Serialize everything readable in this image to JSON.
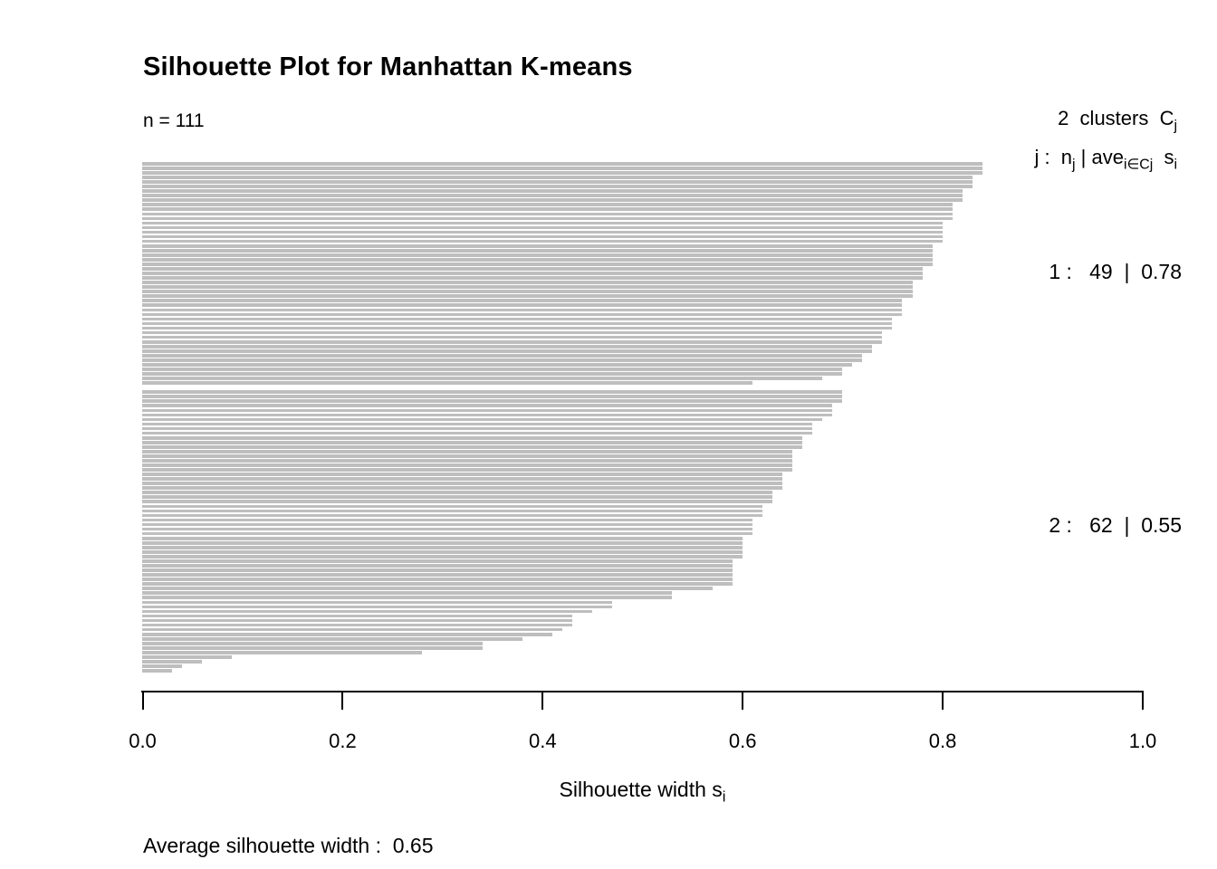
{
  "title": "Silhouette Plot for Manhattan K-means",
  "subtitle": "n = 111",
  "legend": {
    "line1_text": "2  clusters  C",
    "line1_sub": "j",
    "f1": "j :  n",
    "f1_sub": "j",
    "f2": " | ave",
    "f2_sub": "i∈Cj",
    "f3": "  s",
    "f3_sub": "i"
  },
  "xlabel": {
    "text": "Silhouette width s",
    "sub": "i"
  },
  "footer": {
    "average_text": "Average silhouette width :  0.65"
  },
  "chart_data": {
    "type": "bar",
    "orientation": "horizontal",
    "title": "Silhouette Plot for Manhattan K-means",
    "n": 111,
    "n_clusters": 2,
    "average_silhouette_width": 0.65,
    "xlabel": "Silhouette width si",
    "xlim": [
      0,
      1
    ],
    "x_ticks": [
      "0.0",
      "0.2",
      "0.4",
      "0.6",
      "0.8",
      "1.0"
    ],
    "grid": false,
    "bar_color": "#bebebe",
    "clusters": [
      {
        "id": 1,
        "size": 49,
        "avg_width": 0.78,
        "label": "1 :   49  |  0.78",
        "values": [
          0.84,
          0.84,
          0.84,
          0.83,
          0.83,
          0.83,
          0.82,
          0.82,
          0.82,
          0.81,
          0.81,
          0.81,
          0.81,
          0.8,
          0.8,
          0.8,
          0.8,
          0.8,
          0.79,
          0.79,
          0.79,
          0.79,
          0.79,
          0.78,
          0.78,
          0.78,
          0.77,
          0.77,
          0.77,
          0.77,
          0.76,
          0.76,
          0.76,
          0.76,
          0.75,
          0.75,
          0.75,
          0.74,
          0.74,
          0.74,
          0.73,
          0.73,
          0.72,
          0.72,
          0.71,
          0.7,
          0.7,
          0.68,
          0.61
        ]
      },
      {
        "id": 2,
        "size": 62,
        "avg_width": 0.55,
        "label": "2 :   62  |  0.55",
        "values": [
          0.7,
          0.7,
          0.7,
          0.69,
          0.69,
          0.69,
          0.68,
          0.67,
          0.67,
          0.67,
          0.66,
          0.66,
          0.66,
          0.65,
          0.65,
          0.65,
          0.65,
          0.65,
          0.64,
          0.64,
          0.64,
          0.64,
          0.63,
          0.63,
          0.63,
          0.62,
          0.62,
          0.62,
          0.61,
          0.61,
          0.61,
          0.61,
          0.6,
          0.6,
          0.6,
          0.6,
          0.6,
          0.59,
          0.59,
          0.59,
          0.59,
          0.59,
          0.59,
          0.57,
          0.53,
          0.53,
          0.47,
          0.47,
          0.45,
          0.43,
          0.43,
          0.43,
          0.42,
          0.41,
          0.38,
          0.34,
          0.34,
          0.28,
          0.09,
          0.06,
          0.04,
          0.03
        ]
      }
    ]
  }
}
